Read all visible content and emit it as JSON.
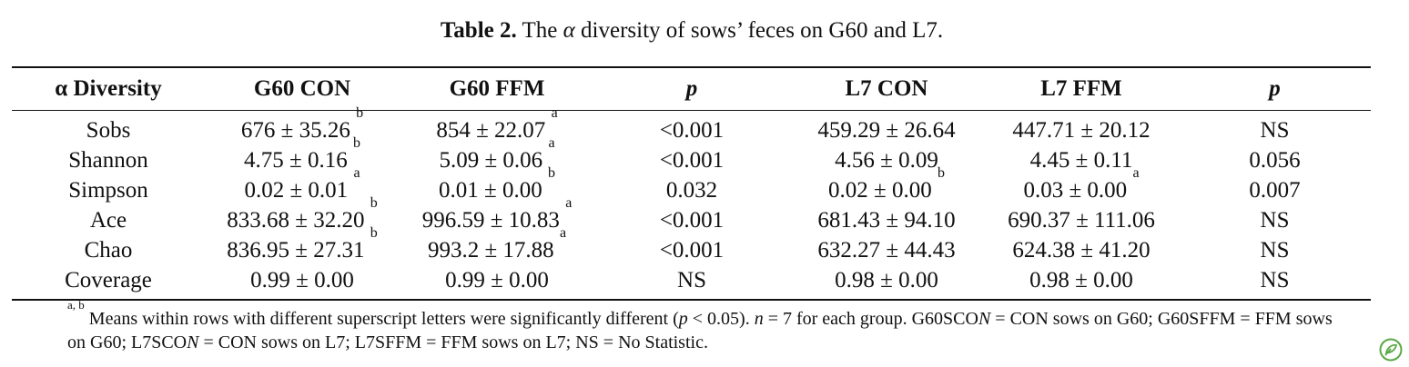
{
  "caption": {
    "label": "Table 2.",
    "text_pre": " The ",
    "alpha": "α",
    "text_post": " diversity of sows’ feces on G60 and L7."
  },
  "headers": [
    "α Diversity",
    "G60 CON",
    "G60 FFM",
    "p",
    "L7 CON",
    "L7 FFM",
    "p"
  ],
  "rows": [
    [
      {
        "v": "Sobs"
      },
      {
        "v": "676 ± 35.26",
        "s": "b"
      },
      {
        "v": "854 ± 22.07",
        "s": "a"
      },
      {
        "v": "<0.001"
      },
      {
        "v": "459.29 ± 26.64"
      },
      {
        "v": "447.71 ± 20.12"
      },
      {
        "v": "NS"
      }
    ],
    [
      {
        "v": "Shannon"
      },
      {
        "v": "4.75 ± 0.16",
        "s": "b"
      },
      {
        "v": "5.09 ± 0.06",
        "s": "a"
      },
      {
        "v": "<0.001"
      },
      {
        "v": "4.56 ± 0.09"
      },
      {
        "v": "4.45 ± 0.11"
      },
      {
        "v": "0.056"
      }
    ],
    [
      {
        "v": "Simpson"
      },
      {
        "v": "0.02 ± 0.01",
        "s": "a"
      },
      {
        "v": "0.01 ± 0.00",
        "s": "b"
      },
      {
        "v": "0.032"
      },
      {
        "v": "0.02 ± 0.00",
        "s": "b"
      },
      {
        "v": "0.03 ± 0.00",
        "s": "a"
      },
      {
        "v": "0.007"
      }
    ],
    [
      {
        "v": "Ace"
      },
      {
        "v": "833.68 ± 32.20",
        "s": "b"
      },
      {
        "v": "996.59 ± 10.83",
        "s": "a"
      },
      {
        "v": "<0.001"
      },
      {
        "v": "681.43 ± 94.10"
      },
      {
        "v": "690.37 ± 111.06"
      },
      {
        "v": "NS"
      }
    ],
    [
      {
        "v": "Chao"
      },
      {
        "v": "836.95 ± 27.31",
        "s": "b"
      },
      {
        "v": "993.2 ± 17.88",
        "s": "a"
      },
      {
        "v": "<0.001"
      },
      {
        "v": "632.27 ± 44.43"
      },
      {
        "v": "624.38 ± 41.20"
      },
      {
        "v": "NS"
      }
    ],
    [
      {
        "v": "Coverage"
      },
      {
        "v": "0.99 ± 0.00"
      },
      {
        "v": "0.99 ± 0.00"
      },
      {
        "v": "NS"
      },
      {
        "v": "0.98 ± 0.00"
      },
      {
        "v": "0.98 ± 0.00"
      },
      {
        "v": "NS"
      }
    ]
  ],
  "note": {
    "sup": "a, b",
    "t1": " Means within rows with different superscript letters were significantly different (",
    "p": "p",
    "t2": " < 0.05). ",
    "n": "n",
    "t3": " = 7 for each group. G60SCO",
    "N1": "N",
    "t4": " = CON sows on G60; G60SFFM = FFM sows on G60; L7SCO",
    "N2": "N",
    "t5": " = CON sows on L7; L7SFFM = FFM sows on L7; NS = No Statistic."
  },
  "logo_color": "#5aa845"
}
